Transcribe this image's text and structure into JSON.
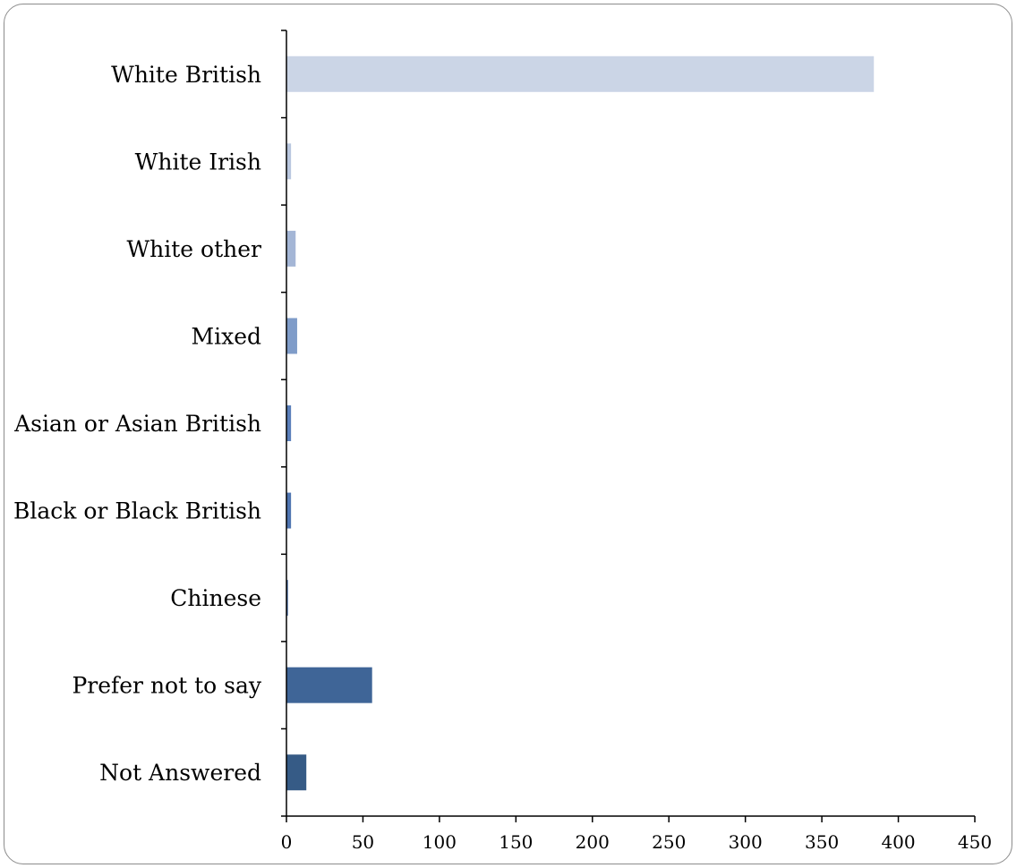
{
  "chart_data": {
    "type": "bar",
    "orientation": "horizontal",
    "title": "",
    "xlabel": "",
    "ylabel": "",
    "categories": [
      "White British",
      "White Irish",
      "White other",
      "Mixed",
      "Asian or Asian British",
      "Black or Black British",
      "Chinese",
      "Prefer not to say",
      "Not Answered"
    ],
    "values": [
      384,
      3,
      6,
      7,
      3,
      3,
      1,
      56,
      13
    ],
    "colors": [
      "#cbd5e6",
      "#b9c7df",
      "#a4b6d6",
      "#7f9cc9",
      "#5a7fba",
      "#4f75b1",
      "#466ca5",
      "#3f6597",
      "#365b86"
    ],
    "xlim": [
      0,
      450
    ],
    "xticks": [
      0,
      50,
      100,
      150,
      200,
      250,
      300,
      350,
      400,
      450
    ],
    "grid": false,
    "legend": "none"
  }
}
